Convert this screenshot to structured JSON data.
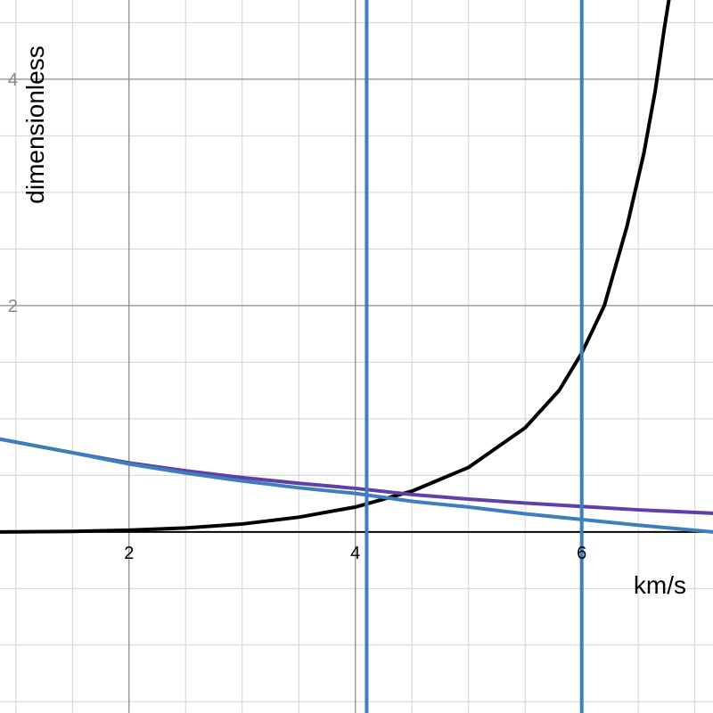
{
  "chart_data": {
    "type": "line",
    "xlabel": "km/s",
    "ylabel": "dimensionless",
    "xlim": [
      0.86,
      7.16
    ],
    "ylim": [
      -1.6,
      4.7
    ],
    "grid": true,
    "x_ticks": [
      {
        "value": 2,
        "label": "2"
      },
      {
        "value": 4,
        "label": "4"
      },
      {
        "value": 6,
        "label": "6"
      }
    ],
    "y_ticks": [
      {
        "value": 2,
        "label": "2"
      },
      {
        "value": 4,
        "label": "4"
      }
    ],
    "series": [
      {
        "color": "#000000",
        "points": [
          [
            0.86,
            0.0
          ],
          [
            1.5,
            0.005
          ],
          [
            2.0,
            0.015
          ],
          [
            2.5,
            0.035
          ],
          [
            3.0,
            0.07
          ],
          [
            3.5,
            0.13
          ],
          [
            4.0,
            0.22
          ],
          [
            4.5,
            0.36
          ],
          [
            5.0,
            0.57
          ],
          [
            5.5,
            0.92
          ],
          [
            5.8,
            1.25
          ],
          [
            6.0,
            1.58
          ],
          [
            6.2,
            2.0
          ],
          [
            6.4,
            2.7
          ],
          [
            6.55,
            3.35
          ],
          [
            6.65,
            3.9
          ],
          [
            6.73,
            4.45
          ],
          [
            6.77,
            4.7
          ]
        ]
      },
      {
        "color": "#5f3fa8",
        "points": [
          [
            0.86,
            0.82
          ],
          [
            1.5,
            0.7
          ],
          [
            2.0,
            0.61
          ],
          [
            2.5,
            0.54
          ],
          [
            3.0,
            0.48
          ],
          [
            3.5,
            0.43
          ],
          [
            4.0,
            0.385
          ],
          [
            4.5,
            0.33
          ],
          [
            5.0,
            0.29
          ],
          [
            5.5,
            0.255
          ],
          [
            6.0,
            0.225
          ],
          [
            6.5,
            0.195
          ],
          [
            7.16,
            0.165
          ]
        ]
      },
      {
        "color": "#3d7ebc",
        "points": [
          [
            0.86,
            0.82
          ],
          [
            1.5,
            0.7
          ],
          [
            2.0,
            0.6
          ],
          [
            2.5,
            0.52
          ],
          [
            3.0,
            0.45
          ],
          [
            3.5,
            0.39
          ],
          [
            4.0,
            0.34
          ],
          [
            4.5,
            0.27
          ],
          [
            5.0,
            0.22
          ],
          [
            5.5,
            0.16
          ],
          [
            6.0,
            0.11
          ],
          [
            6.5,
            0.06
          ],
          [
            7.16,
            0.0
          ]
        ]
      },
      {
        "color": "#3d7ebc",
        "vertical_x": 4.1
      },
      {
        "color": "#3d7ebc",
        "vertical_x": 6.0
      }
    ]
  }
}
